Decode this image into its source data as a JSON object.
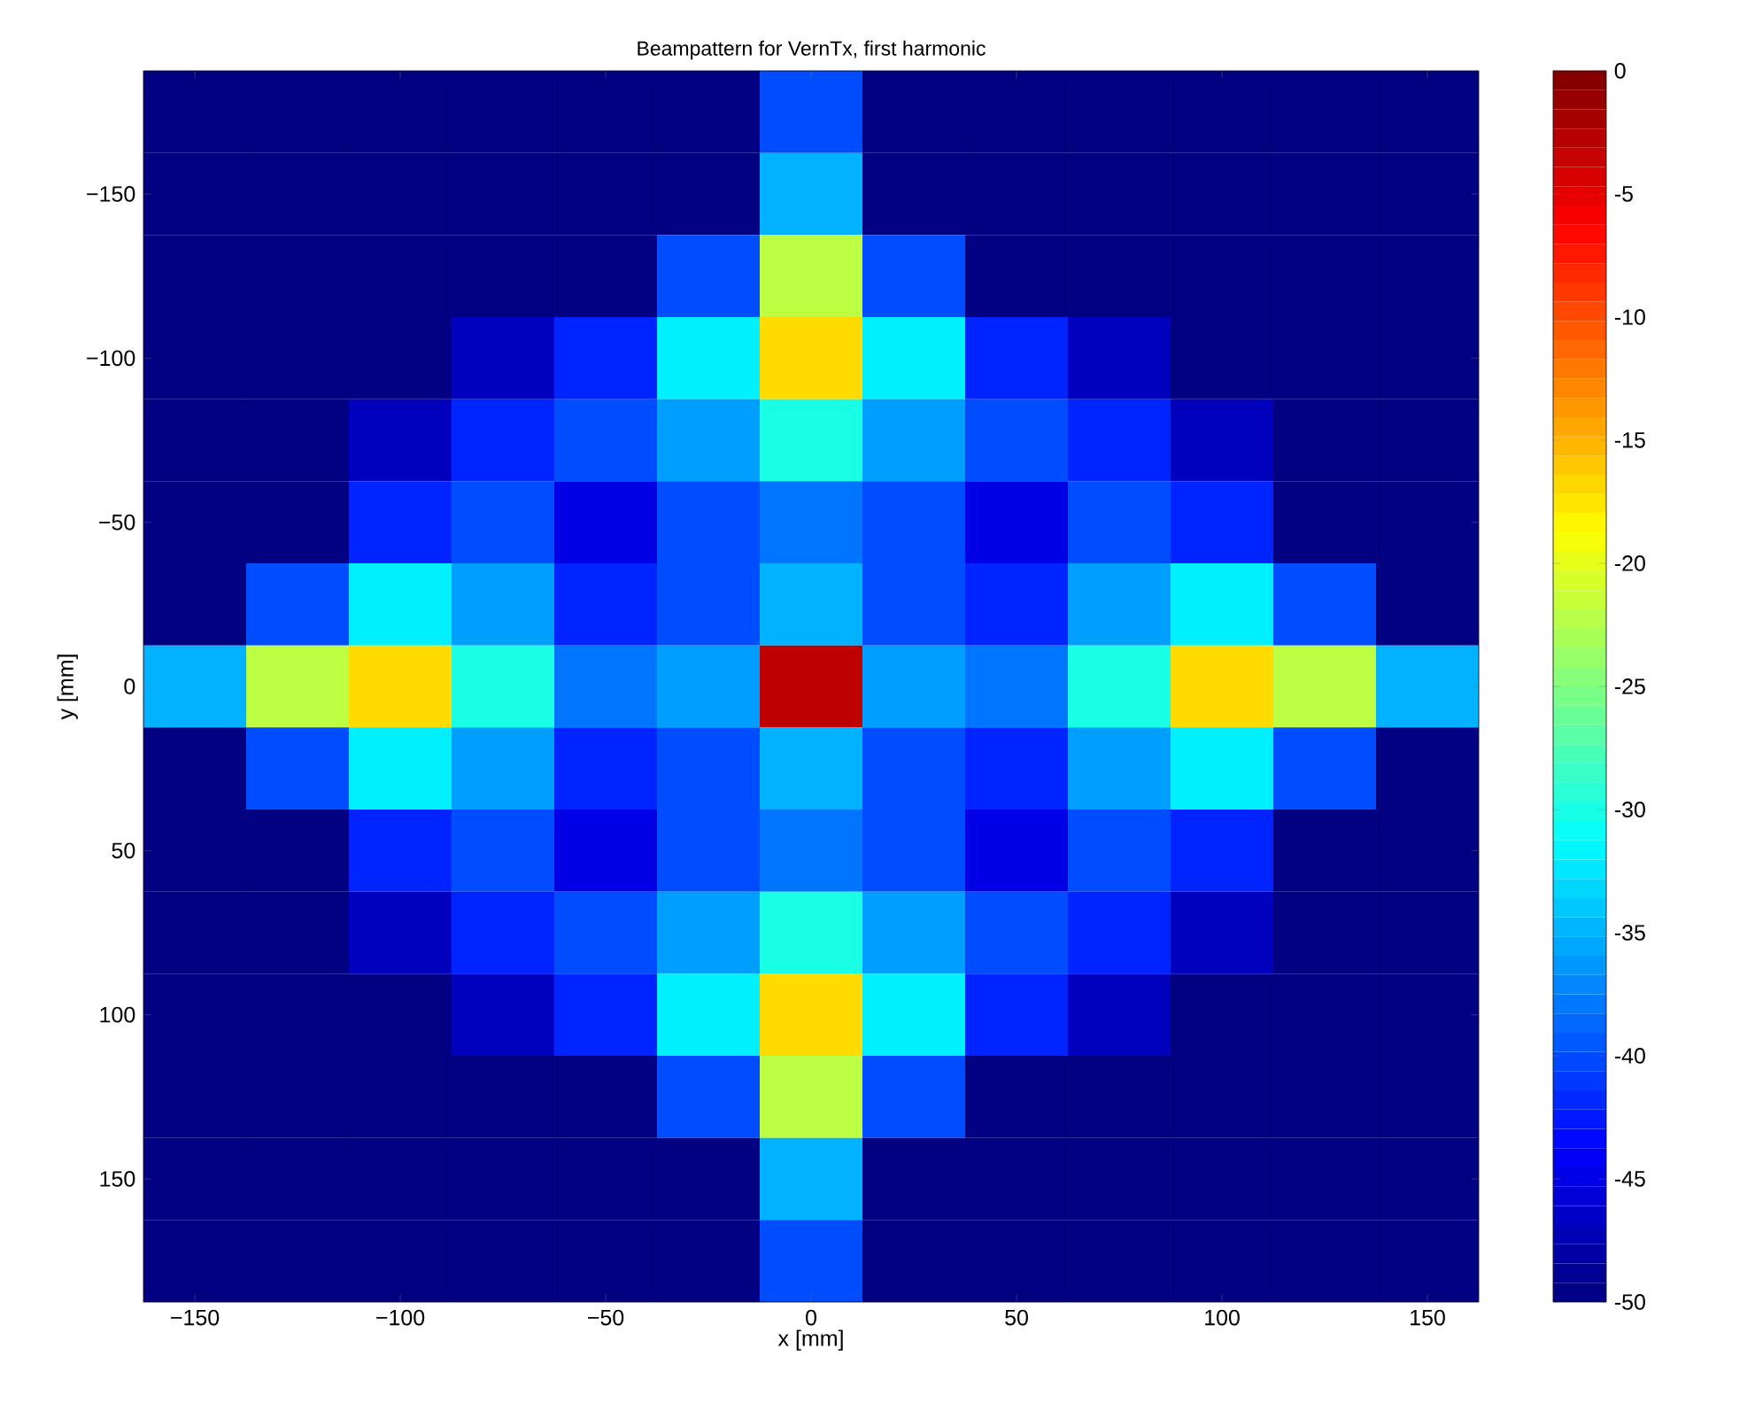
{
  "chart_data": {
    "type": "heatmap",
    "title": "Beampattern for VernTx, first harmonic",
    "xlabel": "x [mm]",
    "ylabel": "y [mm]",
    "categories": [
      "−150",
      null,
      "−100",
      null,
      "−50",
      null,
      "0",
      null,
      "50",
      null,
      "100",
      null,
      "150"
    ],
    "y_categories": [
      null,
      "−150",
      null,
      "−100",
      null,
      "−50",
      null,
      "0",
      null,
      "50",
      null,
      "100",
      null,
      "150",
      null
    ],
    "cells": [
      [
        -50,
        -50,
        -50,
        -50,
        -50,
        -50,
        -40,
        -50,
        -50,
        -50,
        -50,
        -50,
        -50
      ],
      [
        -50,
        -50,
        -50,
        -50,
        -50,
        -50,
        -35,
        -50,
        -50,
        -50,
        -50,
        -50,
        -50
      ],
      [
        -50,
        -50,
        -50,
        -50,
        -50,
        -40,
        -22,
        -40,
        -50,
        -50,
        -50,
        -50,
        -50
      ],
      [
        -50,
        -50,
        -50,
        -47,
        -42,
        -32,
        -17,
        -32,
        -42,
        -47,
        -50,
        -50,
        -50
      ],
      [
        -50,
        -50,
        -47,
        -42,
        -40,
        -36,
        -30,
        -36,
        -40,
        -42,
        -47,
        -50,
        -50
      ],
      [
        -50,
        -50,
        -42,
        -40,
        -45,
        -40,
        -38,
        -40,
        -45,
        -40,
        -42,
        -50,
        -50
      ],
      [
        -50,
        -40,
        -32,
        -36,
        -42,
        -40,
        -35,
        -40,
        -42,
        -36,
        -32,
        -40,
        -50
      ],
      [
        -35,
        -22,
        -17,
        -30,
        -38,
        -36,
        -3,
        -36,
        -38,
        -30,
        -17,
        -22,
        -35
      ],
      [
        -50,
        -40,
        -32,
        -36,
        -42,
        -40,
        -35,
        -40,
        -42,
        -36,
        -32,
        -40,
        -50
      ],
      [
        -50,
        -50,
        -42,
        -40,
        -45,
        -40,
        -38,
        -40,
        -45,
        -40,
        -42,
        -50,
        -50
      ],
      [
        -50,
        -50,
        -47,
        -42,
        -40,
        -36,
        -30,
        -36,
        -40,
        -42,
        -47,
        -50,
        -50
      ],
      [
        -50,
        -50,
        -50,
        -47,
        -42,
        -32,
        -17,
        -32,
        -42,
        -47,
        -50,
        -50,
        -50
      ],
      [
        -50,
        -50,
        -50,
        -50,
        -50,
        -40,
        -22,
        -40,
        -50,
        -50,
        -50,
        -50,
        -50
      ],
      [
        -50,
        -50,
        -50,
        -50,
        -50,
        -50,
        -35,
        -50,
        -50,
        -50,
        -50,
        -50,
        -50
      ],
      [
        -50,
        -50,
        -50,
        -50,
        -50,
        -50,
        -40,
        -50,
        -50,
        -50,
        -50,
        -50,
        -50
      ]
    ],
    "clim": [
      -50,
      0
    ],
    "cticks": [
      -50,
      -45,
      -40,
      -35,
      -30,
      -25,
      -20,
      -15,
      -10,
      -5,
      0
    ]
  }
}
